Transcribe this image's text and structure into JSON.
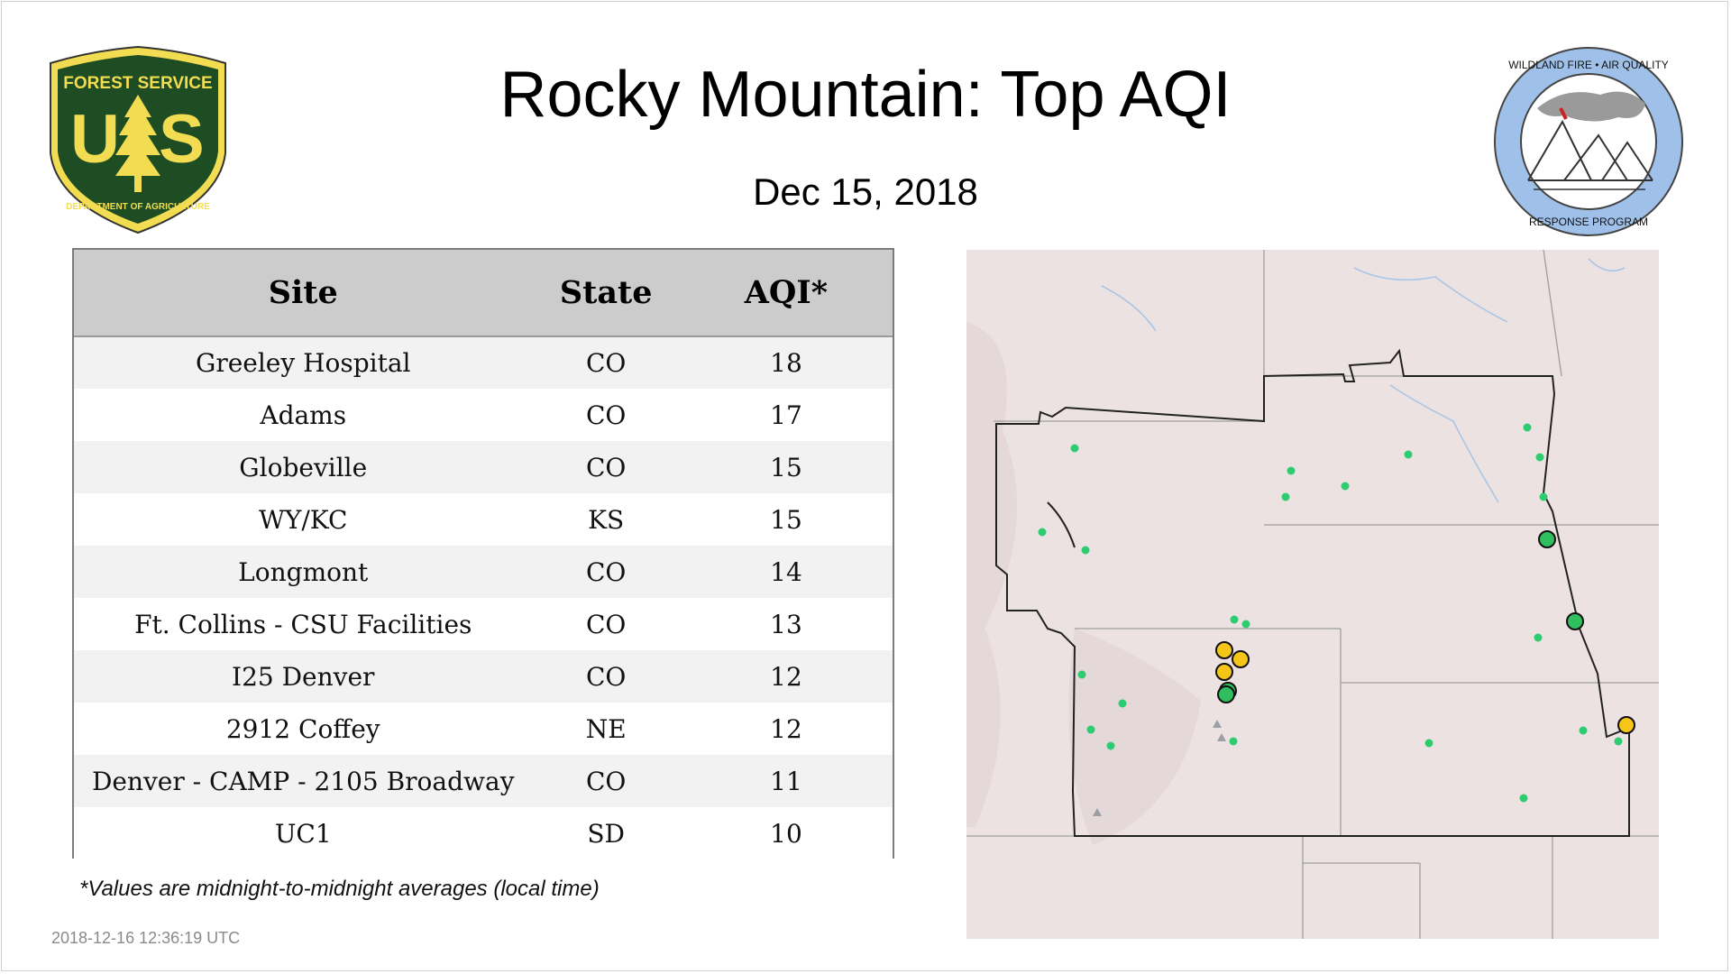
{
  "header": {
    "title": "Rocky Mountain: Top AQI",
    "date": "Dec 15, 2018"
  },
  "logos": {
    "left": {
      "name": "forest-service-shield",
      "top_text": "FOREST SERVICE",
      "letters": "U S",
      "bottom_text": "DEPARTMENT OF AGRICULTURE",
      "color": "#1f4d23",
      "accent": "#f2dc52"
    },
    "right": {
      "name": "wildland-fire-air-quality-badge",
      "top_text": "WILDLAND FIRE • AIR QUALITY",
      "bottom_text": "RESPONSE PROGRAM",
      "ring_color": "#9fc0e8"
    }
  },
  "table": {
    "columns": [
      "Site",
      "State",
      "AQI*"
    ],
    "rows": [
      {
        "site": "Greeley Hospital",
        "state": "CO",
        "aqi": "18"
      },
      {
        "site": "Adams",
        "state": "CO",
        "aqi": "17"
      },
      {
        "site": "Globeville",
        "state": "CO",
        "aqi": "15"
      },
      {
        "site": "WY/KC",
        "state": "KS",
        "aqi": "15"
      },
      {
        "site": "Longmont",
        "state": "CO",
        "aqi": "14"
      },
      {
        "site": "Ft. Collins - CSU Facilities",
        "state": "CO",
        "aqi": "13"
      },
      {
        "site": "I25 Denver",
        "state": "CO",
        "aqi": "12"
      },
      {
        "site": "2912 Coffey",
        "state": "NE",
        "aqi": "12"
      },
      {
        "site": "Denver - CAMP - 2105 Broadway",
        "state": "CO",
        "aqi": "11"
      },
      {
        "site": "UC1",
        "state": "SD",
        "aqi": "10"
      }
    ]
  },
  "footnote": "*Values are midnight-to-midnight averages (local time)",
  "timestamp": "2018-12-16 12:36:19 UTC",
  "map": {
    "colors": {
      "background": "#ece2e2",
      "border": "#222222",
      "good": "#2ecc71",
      "good_large": "#2fbf5f",
      "moderate": "#f5c518"
    }
  }
}
